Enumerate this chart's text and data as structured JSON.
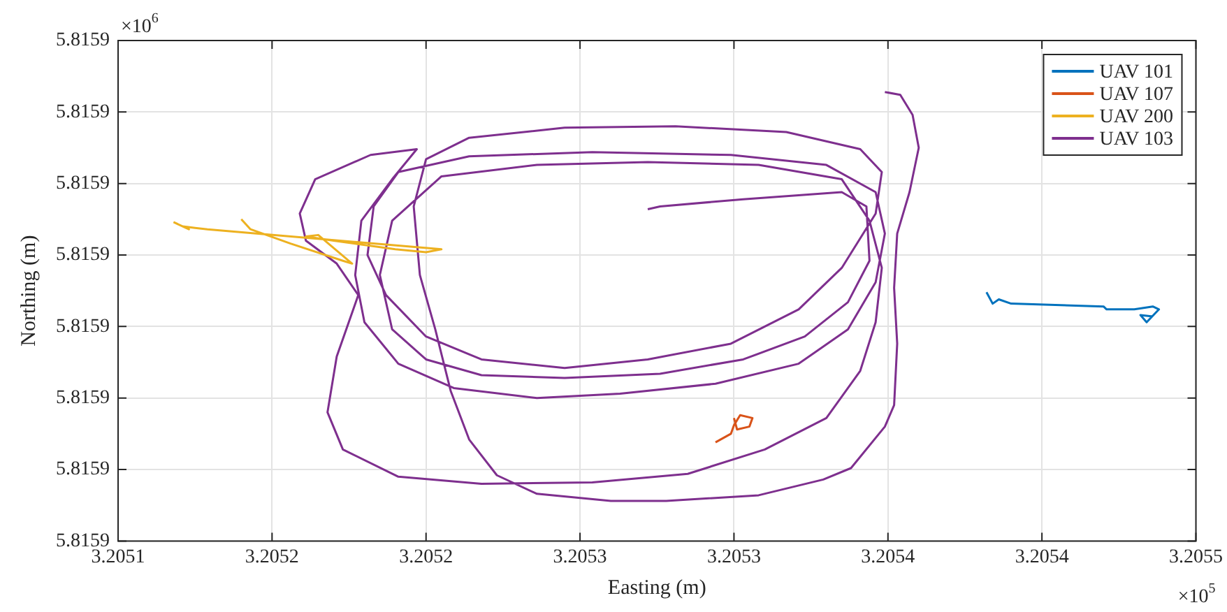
{
  "chart_data": {
    "type": "line",
    "xlabel": "Easting (m)",
    "ylabel": "Northing (m)",
    "annotations": [
      "×10$^{6}$",
      "×10$^{5}$"
    ],
    "xlim": [
      3.2051,
      3.20545
    ],
    "xticks": [
      {
        "value": 3.2051,
        "label": "3.2051"
      },
      {
        "value": 3.20515,
        "label": "3.2052"
      },
      {
        "value": 3.2052,
        "label": "3.2052"
      },
      {
        "value": 3.20525,
        "label": "3.2053"
      },
      {
        "value": 3.2053,
        "label": "3.2053"
      },
      {
        "value": 3.20535,
        "label": "3.2054"
      },
      {
        "value": 3.2054,
        "label": "3.2054"
      },
      {
        "value": 3.20545,
        "label": "3.2055"
      }
    ],
    "ylim": [
      5.81588,
      5.815915
    ],
    "yticks": [
      {
        "value": 5.81588,
        "label": "5.8159"
      },
      {
        "value": 5.815885,
        "label": "5.8159"
      },
      {
        "value": 5.81589,
        "label": "5.8159"
      },
      {
        "value": 5.815895,
        "label": "5.8159"
      },
      {
        "value": 5.8159,
        "label": "5.8159"
      },
      {
        "value": 5.815905,
        "label": "5.8159"
      },
      {
        "value": 5.81591,
        "label": "5.8159"
      },
      {
        "value": 5.815915,
        "label": "5.8159"
      }
    ],
    "grid": true,
    "legend": "top right",
    "series": [
      {
        "name": "UAV 101",
        "color": "#0072bd",
        "x": [
          3.205382,
          3.205384,
          3.205386,
          3.20539,
          3.20542,
          3.205421,
          3.20543,
          3.205436,
          3.205438,
          3.205434,
          3.205432,
          3.205436
        ],
        "values": [
          5.8158974,
          5.8158966,
          5.8158969,
          5.8158966,
          5.8158964,
          5.8158962,
          5.8158962,
          5.8158964,
          5.8158962,
          5.8158953,
          5.8158958,
          5.8158957
        ]
      },
      {
        "name": "UAV 107",
        "color": "#d95319",
        "x": [
          3.205294,
          3.205299,
          3.2053,
          3.205302,
          3.205306,
          3.205305,
          3.205301,
          3.2053
        ],
        "values": [
          5.8158869,
          5.8158875,
          5.8158881,
          5.8158888,
          5.8158886,
          5.815888,
          5.8158878,
          5.8158886
        ]
      },
      {
        "name": "UAV 200",
        "color": "#edb120",
        "x": [
          3.205118,
          3.205123,
          3.205121,
          3.205125,
          3.205129,
          3.205205,
          3.2052,
          3.20519,
          3.20517,
          3.205161,
          3.205165,
          3.205176,
          3.205173,
          3.205156,
          3.205143,
          3.20514
        ],
        "values": [
          5.8159023,
          5.8159018,
          5.815902,
          5.8159019,
          5.8159018,
          5.8159004,
          5.8159002,
          5.8159004,
          5.815901,
          5.8159013,
          5.8159014,
          5.8158994,
          5.8158996,
          5.8159008,
          5.8159018,
          5.8159025
        ]
      },
      {
        "name": "UAV 103",
        "color": "#7e2f8e",
        "x": [
          3.205349,
          3.205354,
          3.205358,
          3.20536,
          3.205357,
          3.205353,
          3.205352,
          3.205353,
          3.205352,
          3.205349,
          3.205338,
          3.205329,
          3.205308,
          3.205278,
          3.20526,
          3.205236,
          3.205223,
          3.205214,
          3.205208,
          3.205203,
          3.205198,
          3.205196,
          3.2052,
          3.205214,
          3.205245,
          3.205281,
          3.205317,
          3.205341,
          3.205348,
          3.205346,
          3.205335,
          3.205321,
          3.205299,
          3.205272,
          3.205245,
          3.205218,
          3.2052,
          3.205187,
          3.205181,
          3.205183,
          3.205191,
          3.205214,
          3.205254,
          3.205299,
          3.20533,
          3.205346,
          3.205349,
          3.205346,
          3.205337,
          3.205321,
          3.205294,
          3.205263,
          3.205236,
          3.205209,
          3.205191,
          3.20518,
          3.205177,
          3.205179,
          3.205189,
          3.205197,
          3.205182,
          3.205164,
          3.205159,
          3.205161,
          3.205171,
          3.205178,
          3.205171,
          3.205168,
          3.205173,
          3.205191,
          3.205218,
          3.205254,
          3.205285,
          3.20531,
          3.20533,
          3.205341,
          3.205346,
          3.205348,
          3.205344,
          3.205335,
          3.205308,
          3.205272,
          3.205236,
          3.205205,
          3.205189,
          3.205185,
          3.205189,
          3.2052,
          3.205218,
          3.205245,
          3.205276,
          3.205303,
          3.205323,
          3.205337,
          3.205344,
          3.205343,
          3.205335,
          3.205303,
          3.205276,
          3.205272
        ],
        "values": [
          5.8159114,
          5.8159112,
          5.8159098,
          5.8159075,
          5.8159044,
          5.8159015,
          5.8158977,
          5.8158938,
          5.8158895,
          5.815888,
          5.8158851,
          5.8158843,
          5.8158832,
          5.8158828,
          5.8158828,
          5.8158833,
          5.8158846,
          5.8158871,
          5.8158905,
          5.8158948,
          5.8158986,
          5.8159034,
          5.8159067,
          5.8159082,
          5.8159089,
          5.815909,
          5.8159086,
          5.8159074,
          5.8159058,
          5.8159029,
          5.8158991,
          5.8158962,
          5.8158938,
          5.8158927,
          5.8158921,
          5.8158927,
          5.8158943,
          5.8158972,
          5.8159,
          5.8159034,
          5.8159058,
          5.8159069,
          5.8159072,
          5.815907,
          5.8159063,
          5.8159044,
          5.8159015,
          5.8158981,
          5.8158948,
          5.8158924,
          5.815891,
          5.8158903,
          5.81589,
          5.8158907,
          5.8158924,
          5.8158953,
          5.8158986,
          5.8159024,
          5.8159053,
          5.8159074,
          5.815907,
          5.8159053,
          5.8159029,
          5.815901,
          5.8158994,
          5.8158972,
          5.8158929,
          5.815889,
          5.8158864,
          5.8158845,
          5.815884,
          5.8158841,
          5.8158847,
          5.8158864,
          5.8158886,
          5.8158919,
          5.8158953,
          5.8158991,
          5.8159024,
          5.8159053,
          5.8159063,
          5.8159065,
          5.8159063,
          5.8159055,
          5.8159024,
          5.8158986,
          5.8158948,
          5.8158927,
          5.8158916,
          5.8158914,
          5.8158917,
          5.8158927,
          5.8158943,
          5.8158967,
          5.8158996,
          5.8159034,
          5.8159044,
          5.8159039,
          5.8159034,
          5.8159032
        ]
      }
    ]
  }
}
